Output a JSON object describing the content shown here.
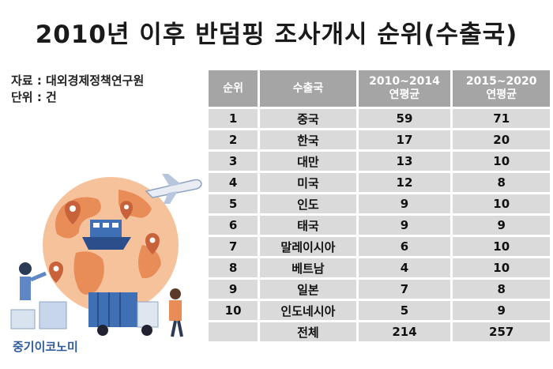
{
  "title": "2010년 이후 반덤핑 조사개시 순위(수출국)",
  "source_line": "자료 : 대외경제정책연구원",
  "unit_line": "단위 : 건",
  "brand": "중기이코노미",
  "table": {
    "headers": [
      "순위",
      "수출국",
      "2010~2014\n연평균",
      "2015~2020\n연평균"
    ],
    "rows": [
      {
        "rank": "1",
        "country": "중국",
        "a": "59",
        "b": "71"
      },
      {
        "rank": "2",
        "country": "한국",
        "a": "17",
        "b": "20"
      },
      {
        "rank": "3",
        "country": "대만",
        "a": "13",
        "b": "10"
      },
      {
        "rank": "4",
        "country": "미국",
        "a": "12",
        "b": "8"
      },
      {
        "rank": "5",
        "country": "인도",
        "a": "9",
        "b": "10"
      },
      {
        "rank": "6",
        "country": "태국",
        "a": "9",
        "b": "9"
      },
      {
        "rank": "7",
        "country": "말레이시아",
        "a": "6",
        "b": "10"
      },
      {
        "rank": "8",
        "country": "베트남",
        "a": "4",
        "b": "10"
      },
      {
        "rank": "9",
        "country": "일본",
        "a": "7",
        "b": "8"
      },
      {
        "rank": "10",
        "country": "인도네시아",
        "a": "5",
        "b": "9"
      },
      {
        "rank": "",
        "country": "전체",
        "a": "214",
        "b": "257"
      }
    ]
  },
  "colors": {
    "header_bg": "#a5a5a5",
    "row_bg": "#dadada",
    "globe": "#f0a878",
    "globe_dark": "#e07a45",
    "truck": "#3f6fb5"
  },
  "icons": [
    "airplane-icon",
    "globe-icon",
    "cargo-ship-icon",
    "delivery-truck-icon",
    "location-pin-icon",
    "person-icon"
  ]
}
